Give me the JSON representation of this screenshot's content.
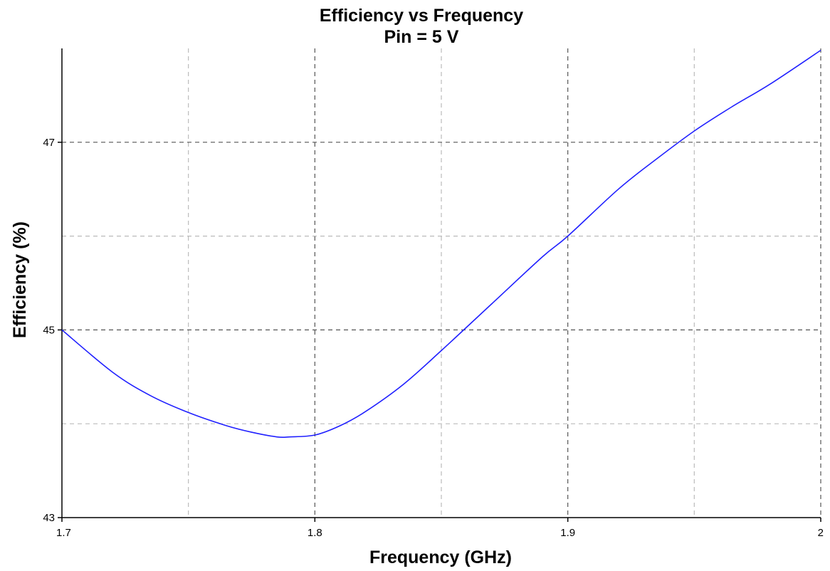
{
  "chart_data": {
    "type": "line",
    "title": "Efficiency vs Frequency",
    "subtitle": "Pin = 5 V",
    "xlabel": "Frequency (GHz)",
    "ylabel": "Efficiency (%)",
    "xlim": [
      1.7,
      2.0
    ],
    "ylim": [
      43,
      48
    ],
    "x_ticks": [
      1.7,
      1.8,
      1.9,
      2.0
    ],
    "x_tick_labels": [
      "1.7",
      "1.8",
      "1.9",
      "2"
    ],
    "x_minor_grid": [
      1.75,
      1.85,
      1.95
    ],
    "y_ticks": [
      43,
      45,
      47
    ],
    "y_tick_labels": [
      "43",
      "45",
      "47"
    ],
    "y_minor_grid": [
      44,
      46
    ],
    "grid": true,
    "series": [
      {
        "color": "#2020ff",
        "x": [
          1.7,
          1.72,
          1.735,
          1.75,
          1.765,
          1.775,
          1.785,
          1.79,
          1.8,
          1.81,
          1.82,
          1.835,
          1.85,
          1.87,
          1.89,
          1.9,
          1.92,
          1.935,
          1.95,
          1.965,
          1.98,
          2.0
        ],
        "y": [
          45.0,
          44.55,
          44.3,
          44.12,
          43.98,
          43.91,
          43.86,
          43.86,
          43.88,
          43.98,
          44.13,
          44.42,
          44.78,
          45.28,
          45.78,
          46.0,
          46.5,
          46.82,
          47.12,
          47.38,
          47.62,
          47.98
        ]
      }
    ]
  }
}
